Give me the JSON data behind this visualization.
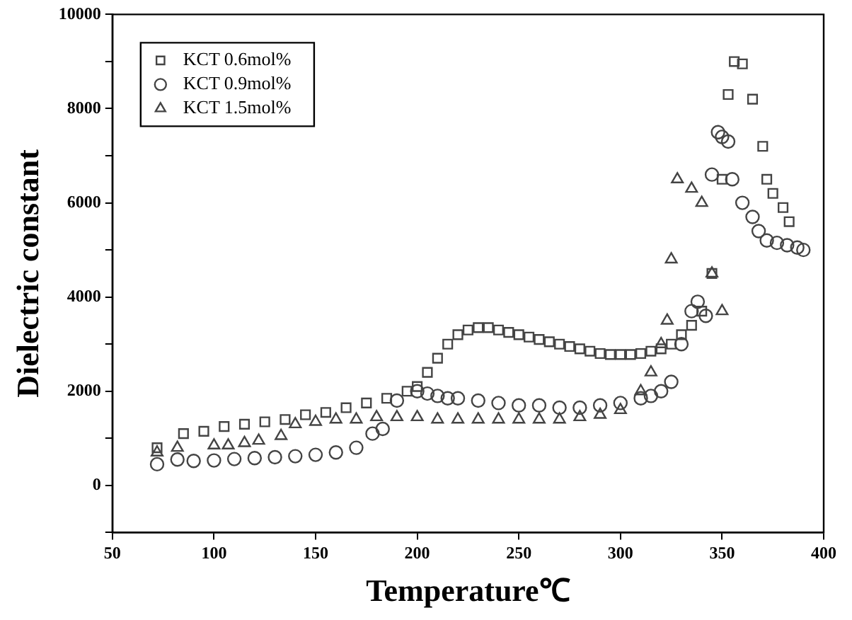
{
  "chart_data": {
    "type": "scatter",
    "xlabel": "Temperature℃",
    "ylabel": "Dielectric constant",
    "xlim": [
      50,
      400
    ],
    "ylim": [
      -1000,
      10000
    ],
    "xticks": [
      50,
      100,
      150,
      200,
      250,
      300,
      350,
      400
    ],
    "yticks": [
      {
        "value": -1000,
        "label": null
      },
      0,
      {
        "value": 1000,
        "label": null
      },
      2000,
      {
        "value": 3000,
        "label": null
      },
      4000,
      {
        "value": 5000,
        "label": null
      },
      6000,
      {
        "value": 7000,
        "label": null
      },
      8000,
      {
        "value": 9000,
        "label": null
      },
      10000
    ],
    "grid": false,
    "legend": "top left",
    "series": [
      {
        "name": "KCT 0.6mol%",
        "color": "#444444",
        "marker": "square",
        "x": [
          72,
          85,
          95,
          105,
          115,
          125,
          135,
          145,
          155,
          165,
          175,
          185,
          195,
          200,
          205,
          210,
          215,
          220,
          225,
          230,
          235,
          240,
          245,
          250,
          255,
          260,
          265,
          270,
          275,
          280,
          285,
          290,
          295,
          300,
          305,
          310,
          315,
          320,
          325,
          330,
          335,
          340,
          345,
          350,
          353,
          356,
          360,
          365,
          370,
          372,
          375,
          380,
          383
        ],
        "values": [
          800,
          1100,
          1150,
          1250,
          1300,
          1350,
          1400,
          1500,
          1550,
          1650,
          1750,
          1850,
          2000,
          2100,
          2400,
          2700,
          3000,
          3200,
          3300,
          3350,
          3350,
          3300,
          3250,
          3200,
          3150,
          3100,
          3050,
          3000,
          2950,
          2900,
          2850,
          2800,
          2780,
          2780,
          2780,
          2800,
          2850,
          2900,
          3000,
          3200,
          3400,
          3700,
          4500,
          6500,
          8300,
          9000,
          8950,
          8200,
          7200,
          6500,
          6200,
          5900,
          5600
        ]
      },
      {
        "name": "KCT 0.9mol%",
        "color": "#444444",
        "marker": "circle",
        "x": [
          72,
          82,
          90,
          100,
          110,
          120,
          130,
          140,
          150,
          160,
          170,
          178,
          183,
          190,
          200,
          205,
          210,
          215,
          220,
          230,
          240,
          250,
          260,
          270,
          280,
          290,
          300,
          310,
          315,
          320,
          325,
          330,
          335,
          338,
          342,
          345,
          348,
          350,
          353,
          355,
          360,
          365,
          368,
          372,
          377,
          382,
          387,
          390
        ],
        "values": [
          450,
          550,
          520,
          530,
          560,
          580,
          600,
          620,
          650,
          700,
          800,
          1100,
          1200,
          1800,
          2000,
          1950,
          1900,
          1850,
          1850,
          1800,
          1750,
          1700,
          1700,
          1650,
          1650,
          1700,
          1750,
          1850,
          1900,
          2000,
          2200,
          3000,
          3700,
          3900,
          3600,
          6600,
          7500,
          7400,
          7300,
          6500,
          6000,
          5700,
          5400,
          5200,
          5150,
          5100,
          5050,
          5000
        ]
      },
      {
        "name": "KCT 1.5mol%",
        "color": "#444444",
        "marker": "triangle",
        "x": [
          72,
          82,
          100,
          107,
          115,
          122,
          133,
          140,
          150,
          160,
          170,
          180,
          190,
          200,
          210,
          220,
          230,
          240,
          250,
          260,
          270,
          280,
          290,
          300,
          310,
          315,
          320,
          323,
          325,
          328,
          335,
          340,
          345,
          350
        ],
        "values": [
          700,
          800,
          850,
          850,
          900,
          950,
          1050,
          1300,
          1350,
          1400,
          1400,
          1450,
          1450,
          1450,
          1400,
          1400,
          1400,
          1400,
          1400,
          1400,
          1400,
          1450,
          1500,
          1600,
          2000,
          2400,
          3000,
          3500,
          4800,
          6500,
          6300,
          6000,
          4500,
          3700
        ]
      }
    ]
  }
}
